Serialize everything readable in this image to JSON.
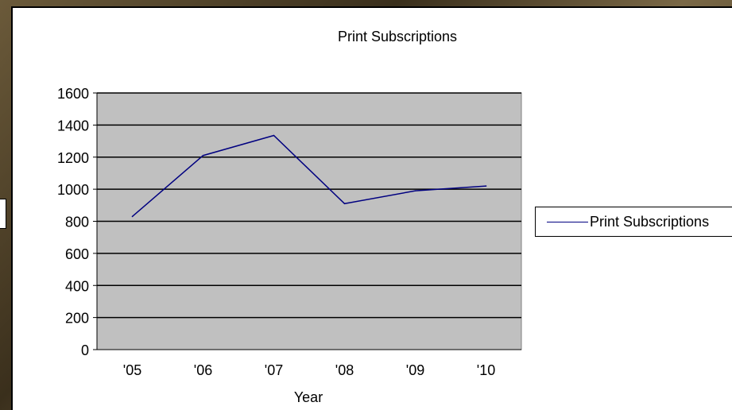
{
  "chart_data": {
    "type": "line",
    "title": "Print Subscriptions",
    "xlabel": "Year",
    "ylabel": "",
    "ylim": [
      0,
      1600
    ],
    "yticks": [
      0,
      200,
      400,
      600,
      800,
      1000,
      1200,
      1400,
      1600
    ],
    "categories": [
      "'05",
      "'06",
      "'07",
      "'08",
      "'09",
      "'10"
    ],
    "series": [
      {
        "name": "Print Subscriptions",
        "x": [
          2005.0,
          2006.0,
          2007.0,
          2008.0,
          2009.0,
          2010.0
        ],
        "values": [
          830,
          1210,
          1335,
          910,
          990,
          1020
        ],
        "color": "#000080"
      }
    ],
    "plot_background": "#c0c0c0",
    "grid": true,
    "legend_position": "right"
  }
}
